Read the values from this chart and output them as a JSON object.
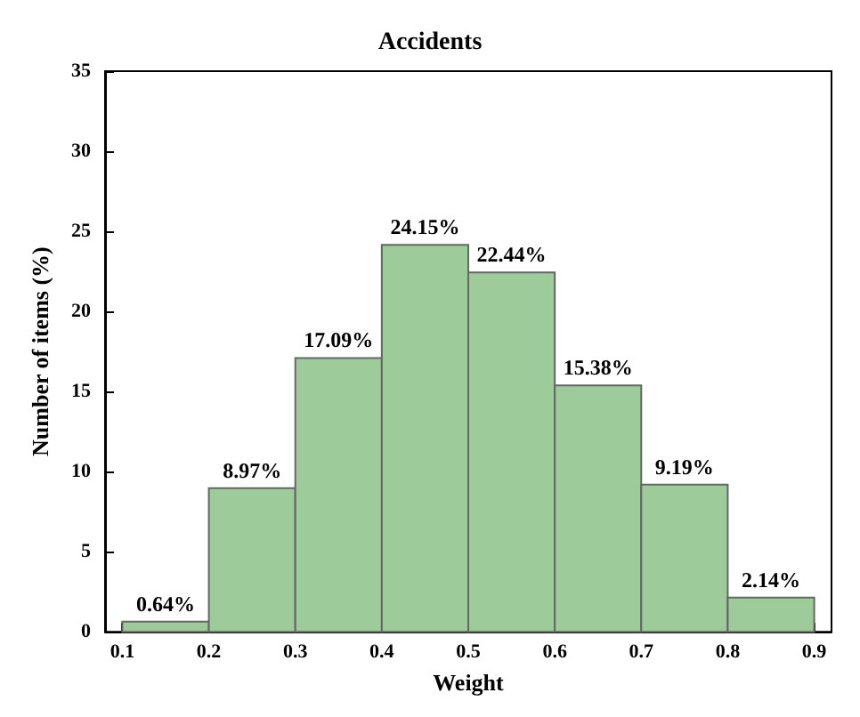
{
  "chart_data": {
    "type": "histogram",
    "title": "Accidents",
    "xlabel": "Weight",
    "ylabel": "Number of items (%)",
    "bins": [
      0.1,
      0.2,
      0.3,
      0.4,
      0.5,
      0.6,
      0.7,
      0.8,
      0.9
    ],
    "values": [
      0.64,
      8.97,
      17.09,
      24.15,
      22.44,
      15.38,
      9.19,
      2.14
    ],
    "value_labels": [
      "0.64%",
      "8.97%",
      "17.09%",
      "24.15%",
      "22.44%",
      "15.38%",
      "9.19%",
      "2.14%"
    ],
    "color": "#9dcc9a",
    "xlim": [
      0.08,
      0.92
    ],
    "xticks": [
      0.1,
      0.2,
      0.3,
      0.4,
      0.5,
      0.6,
      0.7,
      0.8,
      0.9
    ],
    "ylim": [
      0,
      35
    ],
    "yticks": [
      0,
      5,
      10,
      15,
      20,
      25,
      30,
      35
    ],
    "grid": false
  }
}
